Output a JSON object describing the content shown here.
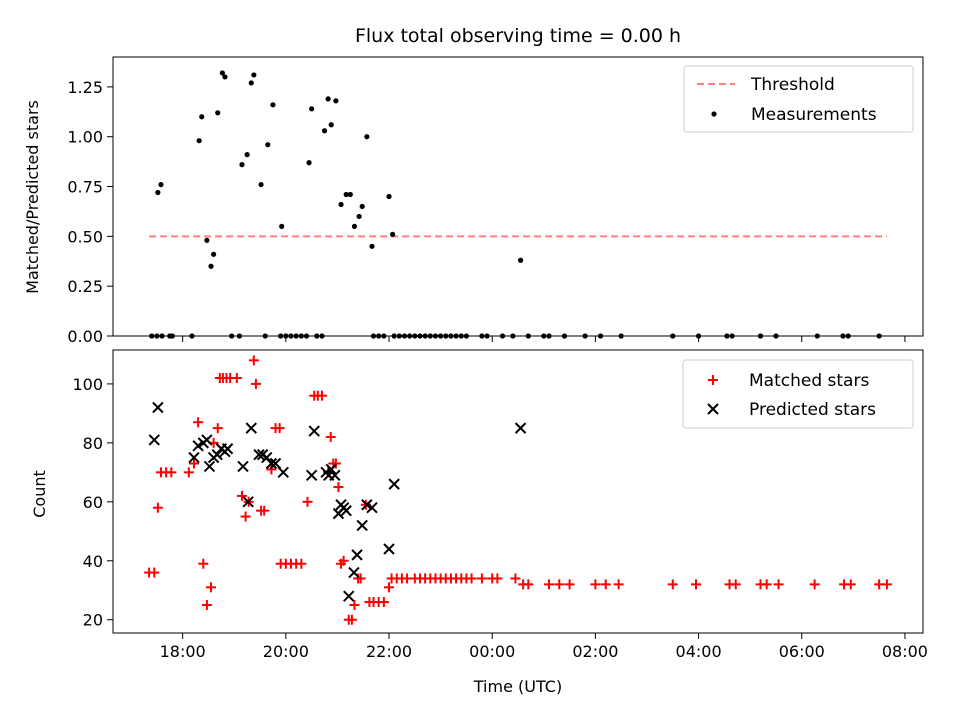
{
  "title": "Flux total observing time = 0.00 h",
  "x_axis": {
    "label": "Time (UTC)",
    "tick_values": [
      18,
      20,
      22,
      24,
      26,
      28,
      30,
      32
    ],
    "tick_labels": [
      "18:00",
      "20:00",
      "22:00",
      "00:00",
      "02:00",
      "04:00",
      "06:00",
      "08:00"
    ],
    "range": [
      16.65,
      32.35
    ]
  },
  "colors": {
    "threshold": "#ff7f7f",
    "measurements": "#000000",
    "matched": "#ff0000",
    "predicted": "#000000"
  },
  "chart_data": [
    {
      "type": "scatter",
      "ylabel": "Matched/Predicted stars",
      "xlim": [
        16.65,
        32.35
      ],
      "ylim": [
        0,
        1.4
      ],
      "y_ticks": [
        0,
        0.25,
        0.5,
        0.75,
        1.0,
        1.25
      ],
      "y_tick_labels": [
        "0.00",
        "0.25",
        "0.50",
        "0.75",
        "1.00",
        "1.25"
      ],
      "legend": {
        "placement": "top-right",
        "entries": [
          "Threshold",
          "Measurements"
        ]
      },
      "threshold": {
        "name": "Threshold",
        "y": 0.5,
        "x": [
          17.35,
          31.65
        ]
      },
      "series": [
        {
          "name": "Measurements",
          "x": [
            17.4,
            17.52,
            17.58,
            18.32,
            18.37,
            18.47,
            18.55,
            18.6,
            18.68,
            18.77,
            18.82,
            19.15,
            19.25,
            19.33,
            19.38,
            19.52,
            19.65,
            19.75,
            19.92,
            20.45,
            20.5,
            20.75,
            20.82,
            20.88,
            20.97,
            21.07,
            21.17,
            21.25,
            21.33,
            21.42,
            21.48,
            21.57,
            21.67,
            22.0,
            22.07,
            24.55
          ],
          "y": [
            0.0,
            0.72,
            0.76,
            0.98,
            1.1,
            0.48,
            0.35,
            0.41,
            1.12,
            1.32,
            1.3,
            0.86,
            0.91,
            1.27,
            1.31,
            0.76,
            0.96,
            1.16,
            0.55,
            0.87,
            1.14,
            1.03,
            1.19,
            1.06,
            1.18,
            0.66,
            0.71,
            0.71,
            0.55,
            0.6,
            0.65,
            1.0,
            0.45,
            0.7,
            0.51,
            0.38
          ]
        },
        {
          "name": "Measurements",
          "x": [
            17.5,
            17.6,
            17.75,
            17.8,
            18.18,
            18.95,
            19.1,
            19.6,
            19.9,
            20.0,
            20.1,
            20.2,
            20.3,
            20.4,
            20.6,
            20.7,
            21.7,
            21.8,
            21.9,
            22.1,
            22.2,
            22.3,
            22.4,
            22.5,
            22.6,
            22.7,
            22.8,
            22.9,
            23.0,
            23.1,
            23.2,
            23.3,
            23.4,
            23.5,
            23.8,
            23.9,
            24.2,
            24.4,
            24.7,
            25.0,
            25.1,
            25.4,
            25.8,
            26.1,
            26.5,
            27.5,
            28.0,
            28.55,
            28.65,
            29.2,
            29.5,
            30.3,
            30.8,
            30.9,
            31.5
          ],
          "y": [
            0,
            0,
            0,
            0,
            0,
            0,
            0,
            0,
            0,
            0,
            0,
            0,
            0,
            0,
            0,
            0,
            0,
            0,
            0,
            0,
            0,
            0,
            0,
            0,
            0,
            0,
            0,
            0,
            0,
            0,
            0,
            0,
            0,
            0,
            0,
            0,
            0,
            0,
            0,
            0,
            0,
            0,
            0,
            0,
            0,
            0,
            0,
            0,
            0,
            0,
            0,
            0,
            0,
            0,
            0
          ]
        }
      ]
    },
    {
      "type": "scatter",
      "ylabel": "Count",
      "xlabel": "Time (UTC)",
      "xlim": [
        16.65,
        32.35
      ],
      "ylim": [
        15.5,
        111.5
      ],
      "y_ticks": [
        20,
        40,
        60,
        80,
        100
      ],
      "y_tick_labels": [
        "20",
        "40",
        "60",
        "80",
        "100"
      ],
      "legend": {
        "placement": "top-right",
        "entries": [
          "Matched stars",
          "Predicted stars"
        ]
      },
      "series": [
        {
          "name": "Matched stars",
          "x": [
            17.35,
            17.45,
            17.52,
            17.58,
            17.68,
            17.78,
            18.12,
            18.22,
            18.3,
            18.4,
            18.47,
            18.55,
            18.6,
            18.68,
            18.72,
            18.78,
            18.85,
            18.92,
            19.05,
            19.15,
            19.22,
            19.28,
            19.38,
            19.42,
            19.52,
            19.58,
            19.72,
            19.8,
            19.88,
            19.9,
            20.0,
            20.1,
            20.2,
            20.3,
            20.42,
            20.55,
            20.62,
            20.7,
            20.82,
            20.87,
            20.92,
            20.97,
            21.02,
            21.07,
            21.12,
            21.22,
            21.28,
            21.33,
            21.4,
            21.45,
            21.55,
            21.62,
            21.7,
            21.8,
            21.9,
            22.0,
            22.05,
            22.15,
            22.25,
            22.35,
            22.5,
            22.6,
            22.7,
            22.8,
            22.9,
            23.0,
            23.1,
            23.2,
            23.3,
            23.4,
            23.5,
            23.6,
            23.8,
            24.0,
            24.1,
            24.45,
            24.6,
            24.7,
            25.1,
            25.3,
            25.5,
            26.0,
            26.2,
            26.45,
            27.5,
            27.95,
            28.6,
            28.72,
            29.2,
            29.32,
            29.55,
            30.25,
            30.82,
            30.95,
            31.5,
            31.65
          ],
          "y": [
            36,
            36,
            58,
            70,
            70,
            70,
            70,
            73,
            87,
            39,
            25,
            31,
            80,
            85,
            102,
            102,
            102,
            102,
            102,
            62,
            55,
            60,
            108,
            100,
            57,
            57,
            71,
            85,
            85,
            39,
            39,
            39,
            39,
            39,
            60,
            96,
            96,
            96,
            70,
            82,
            73,
            73,
            65,
            39,
            40,
            20,
            20,
            25,
            34,
            34,
            59,
            26,
            26,
            26,
            26,
            31,
            34,
            34,
            34,
            34,
            34,
            34,
            34,
            34,
            34,
            34,
            34,
            34,
            34,
            34,
            34,
            34,
            34,
            34,
            34,
            34,
            32,
            32,
            32,
            32,
            32,
            32,
            32,
            32,
            32,
            32,
            32,
            32,
            32,
            32,
            32,
            32,
            32,
            32,
            32,
            32
          ]
        },
        {
          "name": "Predicted stars",
          "x": [
            17.45,
            17.52,
            18.22,
            18.3,
            18.4,
            18.47,
            18.52,
            18.6,
            18.67,
            18.75,
            18.82,
            18.87,
            19.17,
            19.27,
            19.33,
            19.48,
            19.55,
            19.63,
            19.72,
            19.8,
            19.95,
            20.5,
            20.55,
            20.78,
            20.83,
            20.88,
            20.95,
            21.02,
            21.07,
            21.12,
            21.17,
            21.22,
            21.32,
            21.38,
            21.48,
            21.57,
            21.67,
            22.0,
            22.1,
            24.55
          ],
          "y": [
            81,
            92,
            75,
            79,
            80,
            81,
            72,
            75,
            76,
            78,
            77,
            78,
            72,
            60,
            85,
            76,
            76,
            75,
            73,
            73,
            70,
            69,
            84,
            70,
            69,
            71,
            69,
            56,
            59,
            58,
            57,
            28,
            36,
            42,
            52,
            59,
            58,
            44,
            66,
            85
          ]
        }
      ]
    }
  ]
}
